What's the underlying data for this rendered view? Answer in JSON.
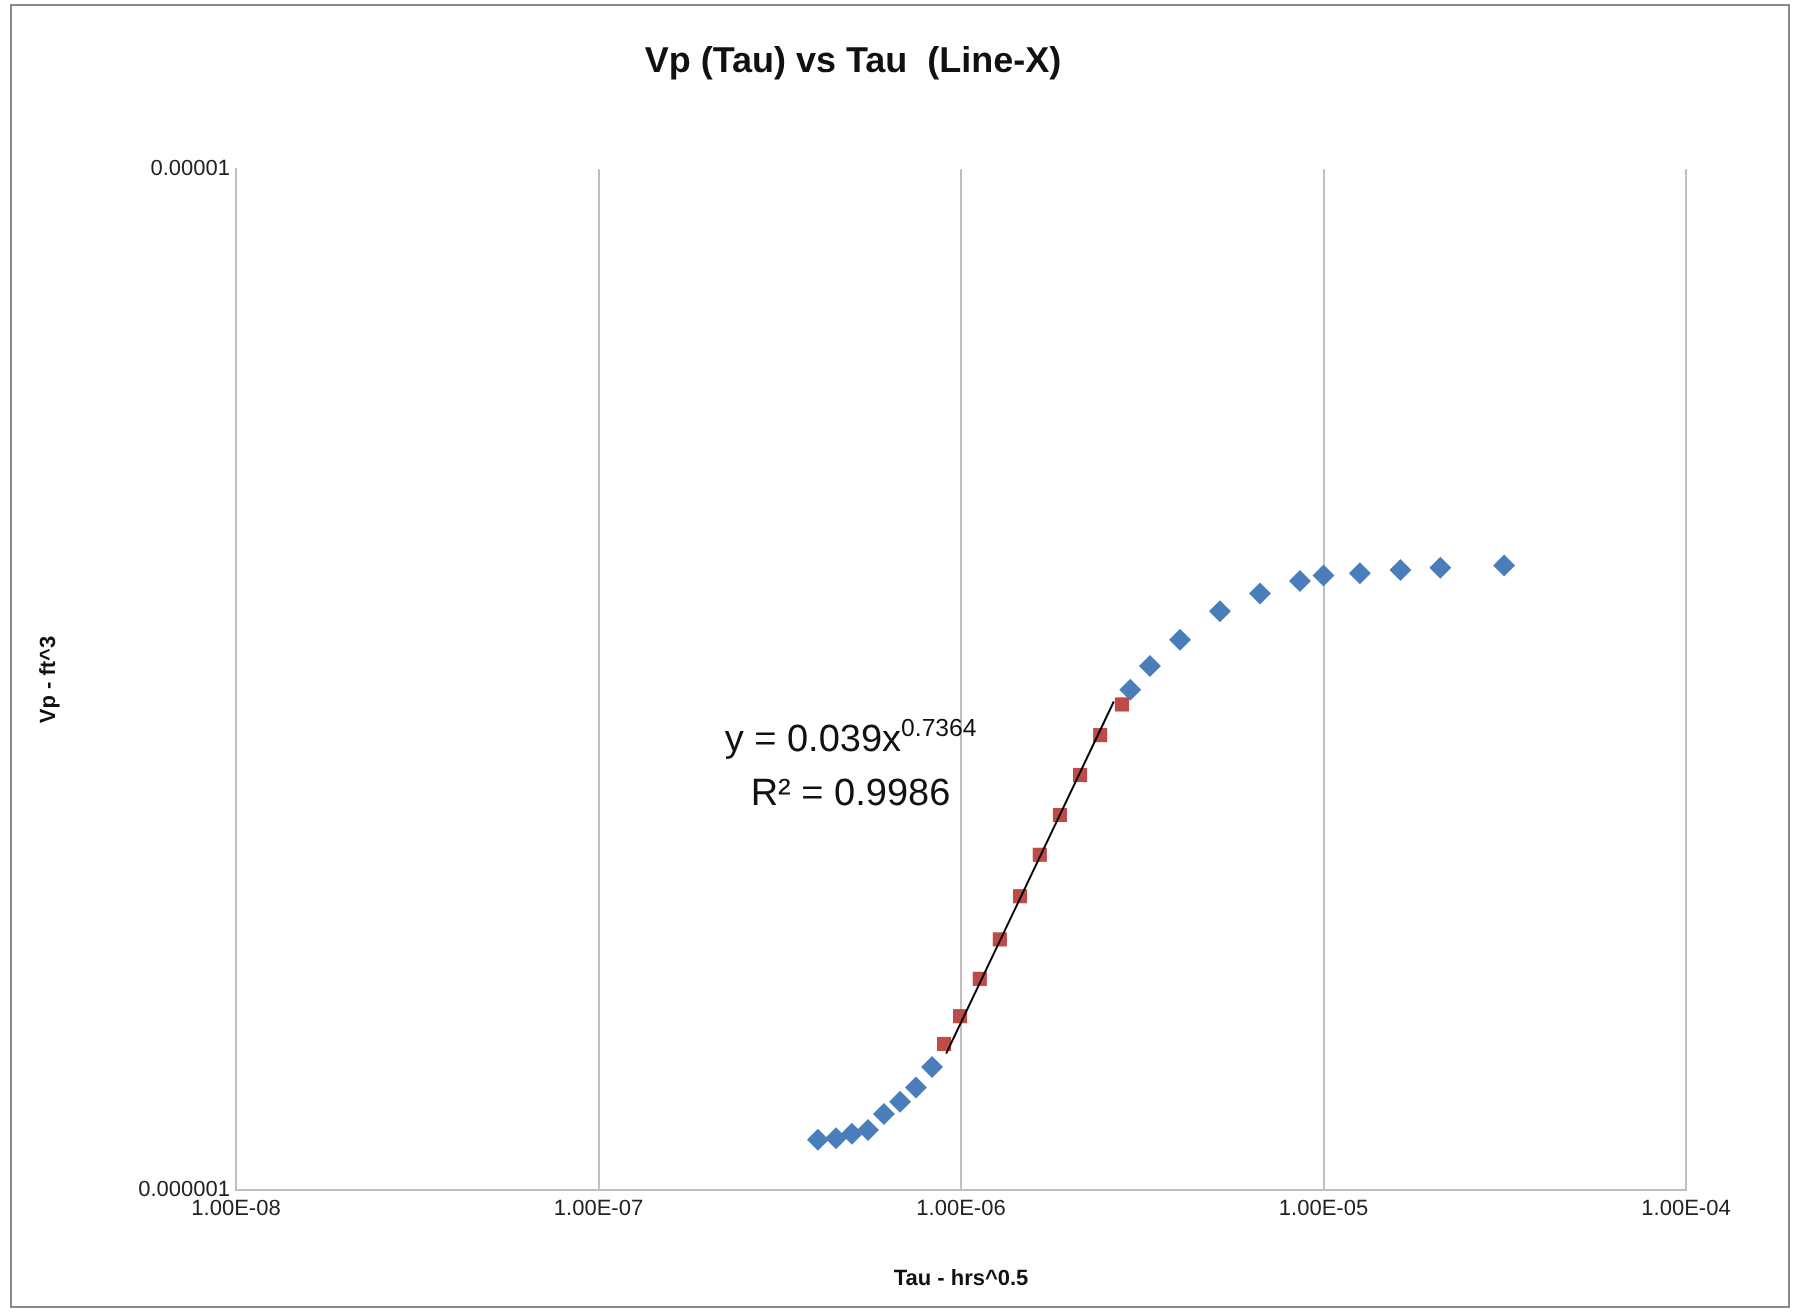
{
  "chart_data": {
    "type": "scatter",
    "title": "Vp (Tau) vs Tau  (Line-X)",
    "xlabel": "Tau - hrs^0.5",
    "ylabel": "Vp - ft^3",
    "log": "xy",
    "grid": "x",
    "legend": false,
    "xlim": [
      1e-08,
      0.0001
    ],
    "xticks": [
      {
        "value": 1e-08,
        "label": "1.00E-08"
      },
      {
        "value": 1e-07,
        "label": "1.00E-07"
      },
      {
        "value": 1e-06,
        "label": "1.00E-06"
      },
      {
        "value": 1e-05,
        "label": "1.00E-05"
      },
      {
        "value": 0.0001,
        "label": "1.00E-04"
      }
    ],
    "ylim": [
      1e-06,
      1e-05
    ],
    "yticks": [
      {
        "value": 1e-06,
        "label": "0.000001"
      },
      {
        "value": 1e-05,
        "label": "0.00001"
      }
    ],
    "annotations": [
      "y = 0.039x$^{0.7364}$",
      "R² = 0.9986"
    ],
    "series": [
      {
        "type": "scatter",
        "marker": "diamond",
        "color": "#4a7ebb",
        "x": [
          4.03e-07,
          4.52e-07,
          5e-07,
          5.54e-07,
          6.13e-07,
          6.79e-07,
          7.51e-07,
          8.32e-07,
          2.93e-06,
          3.32e-06,
          4.02e-06,
          5.18e-06,
          6.68e-06,
          8.61e-06,
          1e-05,
          1.26e-05,
          1.63e-05,
          2.1e-05,
          3.15e-05
        ],
        "values": [
          1.12e-06,
          1.124e-06,
          1.135e-06,
          1.145e-06,
          1.187e-06,
          1.22e-06,
          1.26e-06,
          1.32e-06,
          3.09e-06,
          3.26e-06,
          3.46e-06,
          3.69e-06,
          3.84e-06,
          3.95e-06,
          4e-06,
          4.02e-06,
          4.05e-06,
          4.07e-06,
          4.09e-06
        ]
      },
      {
        "type": "scatter",
        "marker": "square",
        "color": "#be4b48",
        "x": [
          8.98e-07,
          9.94e-07,
          1.127e-06,
          1.28e-06,
          1.455e-06,
          1.65e-06,
          1.875e-06,
          2.13e-06,
          2.42e-06,
          2.78e-06
        ],
        "values": [
          1.39e-06,
          1.48e-06,
          1.61e-06,
          1.76e-06,
          1.94e-06,
          2.13e-06,
          2.33e-06,
          2.55e-06,
          2.79e-06,
          2.99e-06
        ]
      },
      {
        "type": "line",
        "marker": "none",
        "line_style": "solid",
        "color": "#000000",
        "x": [
          9.1e-07,
          2.64e-06
        ],
        "values": [
          1.36e-06,
          3.01e-06
        ]
      }
    ]
  }
}
